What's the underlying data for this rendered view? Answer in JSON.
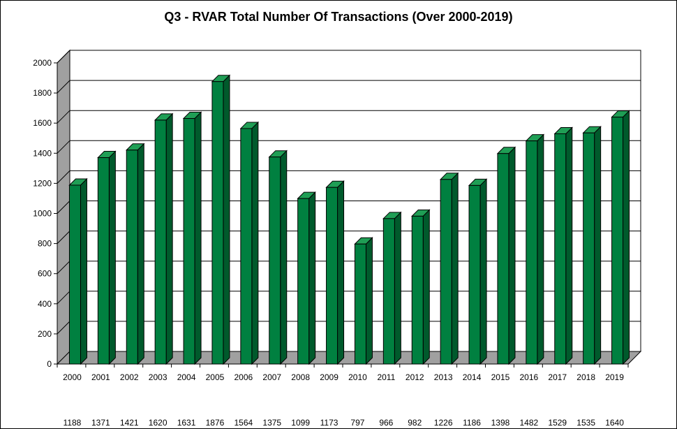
{
  "chart_data": {
    "type": "bar",
    "title": "Q3 - RVAR  Total Number Of Transactions (Over 2000-2019)",
    "categories": [
      "2000",
      "2001",
      "2002",
      "2003",
      "2004",
      "2005",
      "2006",
      "2007",
      "2008",
      "2009",
      "2010",
      "2011",
      "2012",
      "2013",
      "2014",
      "2015",
      "2016",
      "2017",
      "2018",
      "2019"
    ],
    "values": [
      1188,
      1371,
      1421,
      1620,
      1631,
      1876,
      1564,
      1375,
      1099,
      1173,
      797,
      966,
      982,
      1226,
      1186,
      1398,
      1482,
      1529,
      1535,
      1640
    ],
    "y_ticks": [
      0,
      200,
      400,
      600,
      800,
      1000,
      1200,
      1400,
      1600,
      1800,
      2000
    ],
    "ylim": [
      0,
      2000
    ],
    "grid": true,
    "style": "3d-column",
    "colors": {
      "bar_front": "#008040",
      "bar_side": "#005a2c",
      "bar_top": "#1f9e55",
      "wall_side": "#a0a0a0",
      "floor": "#a0a0a0",
      "back_wall": "#ffffff"
    }
  }
}
